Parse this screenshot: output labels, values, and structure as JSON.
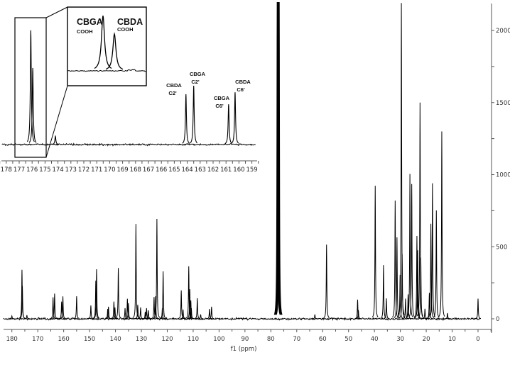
{
  "chart_data": {
    "type": "line",
    "title": "",
    "xlabel": "f1 (ppm)",
    "ylabel": "",
    "xlim": [
      181,
      -4
    ],
    "x_reversed": true,
    "ylim": [
      0,
      2187
    ],
    "grid": false,
    "x_ticks": [
      180,
      170,
      160,
      150,
      140,
      130,
      120,
      110,
      100,
      90,
      80,
      70,
      60,
      50,
      40,
      30,
      20,
      10,
      0
    ],
    "y_ticks": [
      0,
      500,
      1000,
      1500,
      2000
    ],
    "line_color": "#000000",
    "peaks": [
      {
        "ppm": 180.0,
        "intensity": 20
      },
      {
        "ppm": 176.1,
        "intensity": 340
      },
      {
        "ppm": 175.95,
        "intensity": 228
      },
      {
        "ppm": 174.2,
        "intensity": 25
      },
      {
        "ppm": 164.1,
        "intensity": 150
      },
      {
        "ppm": 163.5,
        "intensity": 175
      },
      {
        "ppm": 160.8,
        "intensity": 120
      },
      {
        "ppm": 160.3,
        "intensity": 156
      },
      {
        "ppm": 155.0,
        "intensity": 157
      },
      {
        "ppm": 149.5,
        "intensity": 93
      },
      {
        "ppm": 147.6,
        "intensity": 265
      },
      {
        "ppm": 147.3,
        "intensity": 344
      },
      {
        "ppm": 143.0,
        "intensity": 69
      },
      {
        "ppm": 142.7,
        "intensity": 84
      },
      {
        "ppm": 140.6,
        "intensity": 120
      },
      {
        "ppm": 140.2,
        "intensity": 79
      },
      {
        "ppm": 138.9,
        "intensity": 353
      },
      {
        "ppm": 136.3,
        "intensity": 74
      },
      {
        "ppm": 135.4,
        "intensity": 139
      },
      {
        "ppm": 135.0,
        "intensity": 108
      },
      {
        "ppm": 132.1,
        "intensity": 658
      },
      {
        "ppm": 131.4,
        "intensity": 98
      },
      {
        "ppm": 130.3,
        "intensity": 79
      },
      {
        "ppm": 128.5,
        "intensity": 49
      },
      {
        "ppm": 128.0,
        "intensity": 74
      },
      {
        "ppm": 127.3,
        "intensity": 59
      },
      {
        "ppm": 125.1,
        "intensity": 152
      },
      {
        "ppm": 124.5,
        "intensity": 157
      },
      {
        "ppm": 124.0,
        "intensity": 693
      },
      {
        "ppm": 121.9,
        "intensity": 74
      },
      {
        "ppm": 121.6,
        "intensity": 329
      },
      {
        "ppm": 114.6,
        "intensity": 197
      },
      {
        "ppm": 113.9,
        "intensity": 65
      },
      {
        "ppm": 111.7,
        "intensity": 364
      },
      {
        "ppm": 111.3,
        "intensity": 206
      },
      {
        "ppm": 110.9,
        "intensity": 128
      },
      {
        "ppm": 110.7,
        "intensity": 74
      },
      {
        "ppm": 108.4,
        "intensity": 143
      },
      {
        "ppm": 107.1,
        "intensity": 30
      },
      {
        "ppm": 103.7,
        "intensity": 69
      },
      {
        "ppm": 102.9,
        "intensity": 84
      },
      {
        "ppm": 77.48,
        "intensity": 2300
      },
      {
        "ppm": 77.16,
        "intensity": 2300
      },
      {
        "ppm": 76.84,
        "intensity": 2300
      },
      {
        "ppm": 63.0,
        "intensity": 30
      },
      {
        "ppm": 58.5,
        "intensity": 515
      },
      {
        "ppm": 46.5,
        "intensity": 133
      },
      {
        "ppm": 46.2,
        "intensity": 60
      },
      {
        "ppm": 39.7,
        "intensity": 923
      },
      {
        "ppm": 36.5,
        "intensity": 373
      },
      {
        "ppm": 35.4,
        "intensity": 142
      },
      {
        "ppm": 32.0,
        "intensity": 820
      },
      {
        "ppm": 31.3,
        "intensity": 565
      },
      {
        "ppm": 30.1,
        "intensity": 305
      },
      {
        "ppm": 29.6,
        "intensity": 2190
      },
      {
        "ppm": 29.3,
        "intensity": 450
      },
      {
        "ppm": 28.0,
        "intensity": 140
      },
      {
        "ppm": 27.0,
        "intensity": 170
      },
      {
        "ppm": 26.3,
        "intensity": 1005
      },
      {
        "ppm": 25.6,
        "intensity": 935
      },
      {
        "ppm": 23.6,
        "intensity": 575
      },
      {
        "ppm": 23.3,
        "intensity": 475
      },
      {
        "ppm": 22.4,
        "intensity": 1500
      },
      {
        "ppm": 22.1,
        "intensity": 425
      },
      {
        "ppm": 20.5,
        "intensity": 70
      },
      {
        "ppm": 18.8,
        "intensity": 180
      },
      {
        "ppm": 18.2,
        "intensity": 660
      },
      {
        "ppm": 17.6,
        "intensity": 940
      },
      {
        "ppm": 16.1,
        "intensity": 752
      },
      {
        "ppm": 14.0,
        "intensity": 1300
      },
      {
        "ppm": 11.8,
        "intensity": 40
      },
      {
        "ppm": 0.0,
        "intensity": 140
      }
    ],
    "inset": {
      "xlim": [
        178.3,
        158.7
      ],
      "x_ticks": [
        178,
        177,
        176,
        175,
        174,
        173,
        172,
        171,
        170,
        169,
        168,
        167,
        166,
        165,
        164,
        163,
        162,
        161,
        160,
        159
      ],
      "highlight_range": [
        177.33,
        174.9
      ],
      "peak_labels": [
        {
          "name": "CBDA",
          "carbon": "C2'",
          "ppm": 164.1
        },
        {
          "name": "CBGA",
          "carbon": "C2'",
          "ppm": 163.5
        },
        {
          "name": "CBGA",
          "carbon": "C6'",
          "ppm": 160.8
        },
        {
          "name": "CBDA",
          "carbon": "C6'",
          "ppm": 160.3
        }
      ]
    },
    "zoom": {
      "xlim": [
        176.55,
        175.51
      ],
      "peak_labels": [
        {
          "name": "CBGA",
          "group": "COOH",
          "ppm": 176.1
        },
        {
          "name": "CBDA",
          "group": "COOH",
          "ppm": 175.95
        }
      ]
    }
  }
}
